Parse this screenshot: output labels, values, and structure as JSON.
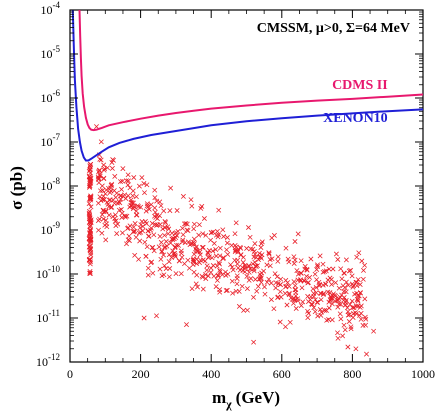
{
  "chart_data": {
    "type": "scatter",
    "title": "CMSSM, μ>0, Σ=64 MeV",
    "xlabel_main": "m",
    "xlabel_sub": "χ",
    "xlabel_unit": "(GeV)",
    "ylabel": "σ (pb)",
    "xlim": [
      0,
      1000
    ],
    "ylim_log10": [
      -12,
      -4
    ],
    "y_scale": "log",
    "grid": false,
    "legend": "inline labels on curves",
    "x_ticks": [
      {
        "v": 0,
        "label": "0"
      },
      {
        "v": 200,
        "label": "200"
      },
      {
        "v": 400,
        "label": "400"
      },
      {
        "v": 600,
        "label": "600"
      },
      {
        "v": 800,
        "label": "800"
      },
      {
        "v": 1000,
        "label": "1000"
      }
    ],
    "y_ticks": [
      {
        "e": -12,
        "label": "10",
        "sup": "-12"
      },
      {
        "e": -11,
        "label": "10",
        "sup": "-11"
      },
      {
        "e": -10,
        "label": "10",
        "sup": "-10"
      },
      {
        "e": -9,
        "label": "10",
        "sup": "-9"
      },
      {
        "e": -8,
        "label": "10",
        "sup": "-8"
      },
      {
        "e": -7,
        "label": "10",
        "sup": "-7"
      },
      {
        "e": -6,
        "label": "10",
        "sup": "-6"
      },
      {
        "e": -5,
        "label": "10",
        "sup": "-5"
      },
      {
        "e": -4,
        "label": "10",
        "sup": "-4"
      }
    ],
    "colors": {
      "cdms": "#e8186e",
      "xenon": "#1f1fd6",
      "points": "#e8202a",
      "axis": "#000000"
    },
    "limit_curves": [
      {
        "name": "CDMS II",
        "color": "#e8186e",
        "points": [
          [
            27,
            -4.0
          ],
          [
            29,
            -4.6
          ],
          [
            31,
            -5.1
          ],
          [
            33,
            -5.5
          ],
          [
            36,
            -5.9
          ],
          [
            40,
            -6.2
          ],
          [
            45,
            -6.45
          ],
          [
            50,
            -6.6
          ],
          [
            55,
            -6.68
          ],
          [
            60,
            -6.72
          ],
          [
            67,
            -6.73
          ],
          [
            75,
            -6.72
          ],
          [
            90,
            -6.68
          ],
          [
            110,
            -6.62
          ],
          [
            150,
            -6.55
          ],
          [
            200,
            -6.47
          ],
          [
            250,
            -6.4
          ],
          [
            300,
            -6.34
          ],
          [
            350,
            -6.29
          ],
          [
            400,
            -6.24
          ],
          [
            500,
            -6.17
          ],
          [
            600,
            -6.11
          ],
          [
            700,
            -6.06
          ],
          [
            800,
            -6.02
          ],
          [
            900,
            -5.97
          ],
          [
            1000,
            -5.92
          ]
        ]
      },
      {
        "name": "XENON10",
        "color": "#1f1fd6",
        "points": [
          [
            8,
            -4.0
          ],
          [
            11,
            -4.9
          ],
          [
            14,
            -5.6
          ],
          [
            18,
            -6.2
          ],
          [
            23,
            -6.7
          ],
          [
            28,
            -7.0
          ],
          [
            33,
            -7.2
          ],
          [
            39,
            -7.35
          ],
          [
            45,
            -7.42
          ],
          [
            52,
            -7.42
          ],
          [
            62,
            -7.37
          ],
          [
            75,
            -7.3
          ],
          [
            90,
            -7.22
          ],
          [
            110,
            -7.12
          ],
          [
            140,
            -7.02
          ],
          [
            180,
            -6.93
          ],
          [
            230,
            -6.84
          ],
          [
            300,
            -6.75
          ],
          [
            400,
            -6.62
          ],
          [
            500,
            -6.53
          ],
          [
            600,
            -6.46
          ],
          [
            700,
            -6.4
          ],
          [
            800,
            -6.35
          ],
          [
            900,
            -6.3
          ],
          [
            1000,
            -6.26
          ]
        ]
      }
    ],
    "scatter_summary": {
      "name": "",
      "marker": "x",
      "approx_count": 800,
      "x_range": [
        35,
        850
      ],
      "y_log10_range": [
        -11.8,
        -6.2
      ],
      "vertical_band": {
        "x": 57,
        "y_log10": [
          -10.0,
          -7.5
        ]
      },
      "band_center_log10_at": [
        [
          100,
          -8.2
        ],
        [
          200,
          -8.9
        ],
        [
          300,
          -9.3
        ],
        [
          400,
          -9.6
        ],
        [
          500,
          -9.85
        ],
        [
          600,
          -10.05
        ],
        [
          700,
          -10.25
        ],
        [
          800,
          -10.55
        ]
      ]
    },
    "curve_labels": [
      {
        "text": "CDMS II",
        "x": 900,
        "y_log10": -5.8
      },
      {
        "text": "XENON10",
        "x": 900,
        "y_log10": -6.55
      }
    ]
  }
}
